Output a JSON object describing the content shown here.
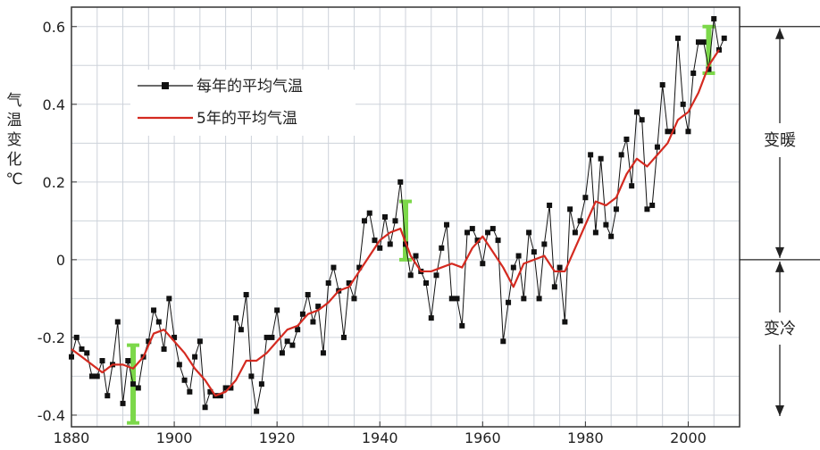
{
  "chart_data": {
    "type": "line",
    "title": "",
    "xlabel": "",
    "ylabel": "气温变化℃",
    "xlim": [
      1880,
      2010
    ],
    "ylim": [
      -0.43,
      0.65
    ],
    "x_ticks": [
      1880,
      1900,
      1920,
      1940,
      1960,
      1980,
      2000
    ],
    "x_tick_labels": [
      "1880",
      "1900",
      "1920",
      "1940",
      "1960",
      "1980",
      "2000"
    ],
    "y_ticks": [
      0.6,
      0.4,
      0.2,
      0,
      -0.2,
      -0.4
    ],
    "y_tick_labels": [
      "0.6",
      "0.4",
      "0.2",
      "0",
      "-0.2",
      "-0.4"
    ],
    "grid": true,
    "legend_position": "upper-left",
    "series": [
      {
        "name": "每年的平均气温",
        "color": "#111111",
        "marker": "square",
        "x": [
          1880,
          1881,
          1882,
          1883,
          1884,
          1885,
          1886,
          1887,
          1888,
          1889,
          1890,
          1891,
          1892,
          1893,
          1894,
          1895,
          1896,
          1897,
          1898,
          1899,
          1900,
          1901,
          1902,
          1903,
          1904,
          1905,
          1906,
          1907,
          1908,
          1909,
          1910,
          1911,
          1912,
          1913,
          1914,
          1915,
          1916,
          1917,
          1918,
          1919,
          1920,
          1921,
          1922,
          1923,
          1924,
          1925,
          1926,
          1927,
          1928,
          1929,
          1930,
          1931,
          1932,
          1933,
          1934,
          1935,
          1936,
          1937,
          1938,
          1939,
          1940,
          1941,
          1942,
          1943,
          1944,
          1945,
          1946,
          1947,
          1948,
          1949,
          1950,
          1951,
          1952,
          1953,
          1954,
          1955,
          1956,
          1957,
          1958,
          1959,
          1960,
          1961,
          1962,
          1963,
          1964,
          1965,
          1966,
          1967,
          1968,
          1969,
          1970,
          1971,
          1972,
          1973,
          1974,
          1975,
          1976,
          1977,
          1978,
          1979,
          1980,
          1981,
          1982,
          1983,
          1984,
          1985,
          1986,
          1987,
          1988,
          1989,
          1990,
          1991,
          1992,
          1993,
          1994,
          1995,
          1996,
          1997,
          1998,
          1999,
          2000,
          2001,
          2002,
          2003,
          2004,
          2005,
          2006,
          2007
        ],
        "y": [
          -0.25,
          -0.2,
          -0.23,
          -0.24,
          -0.3,
          -0.3,
          -0.26,
          -0.35,
          -0.27,
          -0.16,
          -0.37,
          -0.26,
          -0.32,
          -0.33,
          -0.25,
          -0.21,
          -0.13,
          -0.16,
          -0.23,
          -0.1,
          -0.2,
          -0.27,
          -0.31,
          -0.34,
          -0.25,
          -0.21,
          -0.38,
          -0.34,
          -0.35,
          -0.35,
          -0.33,
          -0.33,
          -0.15,
          -0.18,
          -0.09,
          -0.3,
          -0.39,
          -0.32,
          -0.2,
          -0.2,
          -0.13,
          -0.24,
          -0.21,
          -0.22,
          -0.18,
          -0.14,
          -0.09,
          -0.16,
          -0.12,
          -0.24,
          -0.06,
          -0.02,
          -0.08,
          -0.2,
          -0.06,
          -0.1,
          -0.02,
          0.1,
          0.12,
          0.05,
          0.03,
          0.11,
          0.04,
          0.1,
          0.2,
          0.04,
          -0.04,
          0.01,
          -0.03,
          -0.06,
          -0.15,
          -0.04,
          0.03,
          0.09,
          -0.1,
          -0.1,
          -0.17,
          0.07,
          0.08,
          0.05,
          -0.01,
          0.07,
          0.08,
          0.05,
          -0.21,
          -0.11,
          -0.02,
          0.01,
          -0.1,
          0.07,
          0.02,
          -0.1,
          0.04,
          0.14,
          -0.07,
          -0.02,
          -0.16,
          0.13,
          0.07,
          0.1,
          0.16,
          0.27,
          0.07,
          0.26,
          0.09,
          0.06,
          0.13,
          0.27,
          0.31,
          0.19,
          0.38,
          0.36,
          0.13,
          0.14,
          0.29,
          0.45,
          0.33,
          0.33,
          0.57,
          0.4,
          0.33,
          0.48,
          0.56,
          0.56,
          0.49,
          0.62,
          0.54,
          0.57
        ]
      },
      {
        "name": "5年的平均气温",
        "color": "#d42a20",
        "x": [
          1880,
          1882,
          1884,
          1886,
          1888,
          1890,
          1892,
          1894,
          1896,
          1898,
          1900,
          1902,
          1904,
          1906,
          1908,
          1910,
          1912,
          1914,
          1916,
          1918,
          1920,
          1922,
          1924,
          1926,
          1928,
          1930,
          1932,
          1934,
          1936,
          1938,
          1940,
          1942,
          1944,
          1946,
          1948,
          1950,
          1952,
          1954,
          1956,
          1958,
          1960,
          1962,
          1964,
          1966,
          1968,
          1970,
          1972,
          1974,
          1976,
          1978,
          1980,
          1982,
          1984,
          1986,
          1988,
          1990,
          1992,
          1994,
          1996,
          1998,
          2000,
          2002,
          2004,
          2006
        ],
        "y": [
          -0.23,
          -0.25,
          -0.27,
          -0.29,
          -0.27,
          -0.27,
          -0.28,
          -0.25,
          -0.19,
          -0.18,
          -0.21,
          -0.24,
          -0.28,
          -0.31,
          -0.35,
          -0.34,
          -0.31,
          -0.26,
          -0.26,
          -0.24,
          -0.21,
          -0.18,
          -0.17,
          -0.14,
          -0.13,
          -0.11,
          -0.08,
          -0.07,
          -0.03,
          0.01,
          0.05,
          0.07,
          0.08,
          0.01,
          -0.03,
          -0.03,
          -0.02,
          -0.01,
          -0.02,
          0.03,
          0.06,
          0.02,
          -0.02,
          -0.07,
          -0.01,
          0.0,
          0.01,
          -0.03,
          -0.03,
          0.03,
          0.09,
          0.15,
          0.14,
          0.16,
          0.22,
          0.26,
          0.24,
          0.27,
          0.3,
          0.36,
          0.38,
          0.43,
          0.5,
          0.54
        ]
      }
    ],
    "highlights": [
      {
        "x": 1892,
        "y_low": -0.42,
        "y_high": -0.22,
        "color": "#7cd84a"
      },
      {
        "x": 1945,
        "y_low": 0.0,
        "y_high": 0.15,
        "color": "#7cd84a"
      },
      {
        "x": 2004,
        "y_low": 0.48,
        "y_high": 0.6,
        "color": "#7cd84a"
      }
    ],
    "annotations": {
      "warming_label": "变暖",
      "cooling_label": "变冷"
    }
  }
}
